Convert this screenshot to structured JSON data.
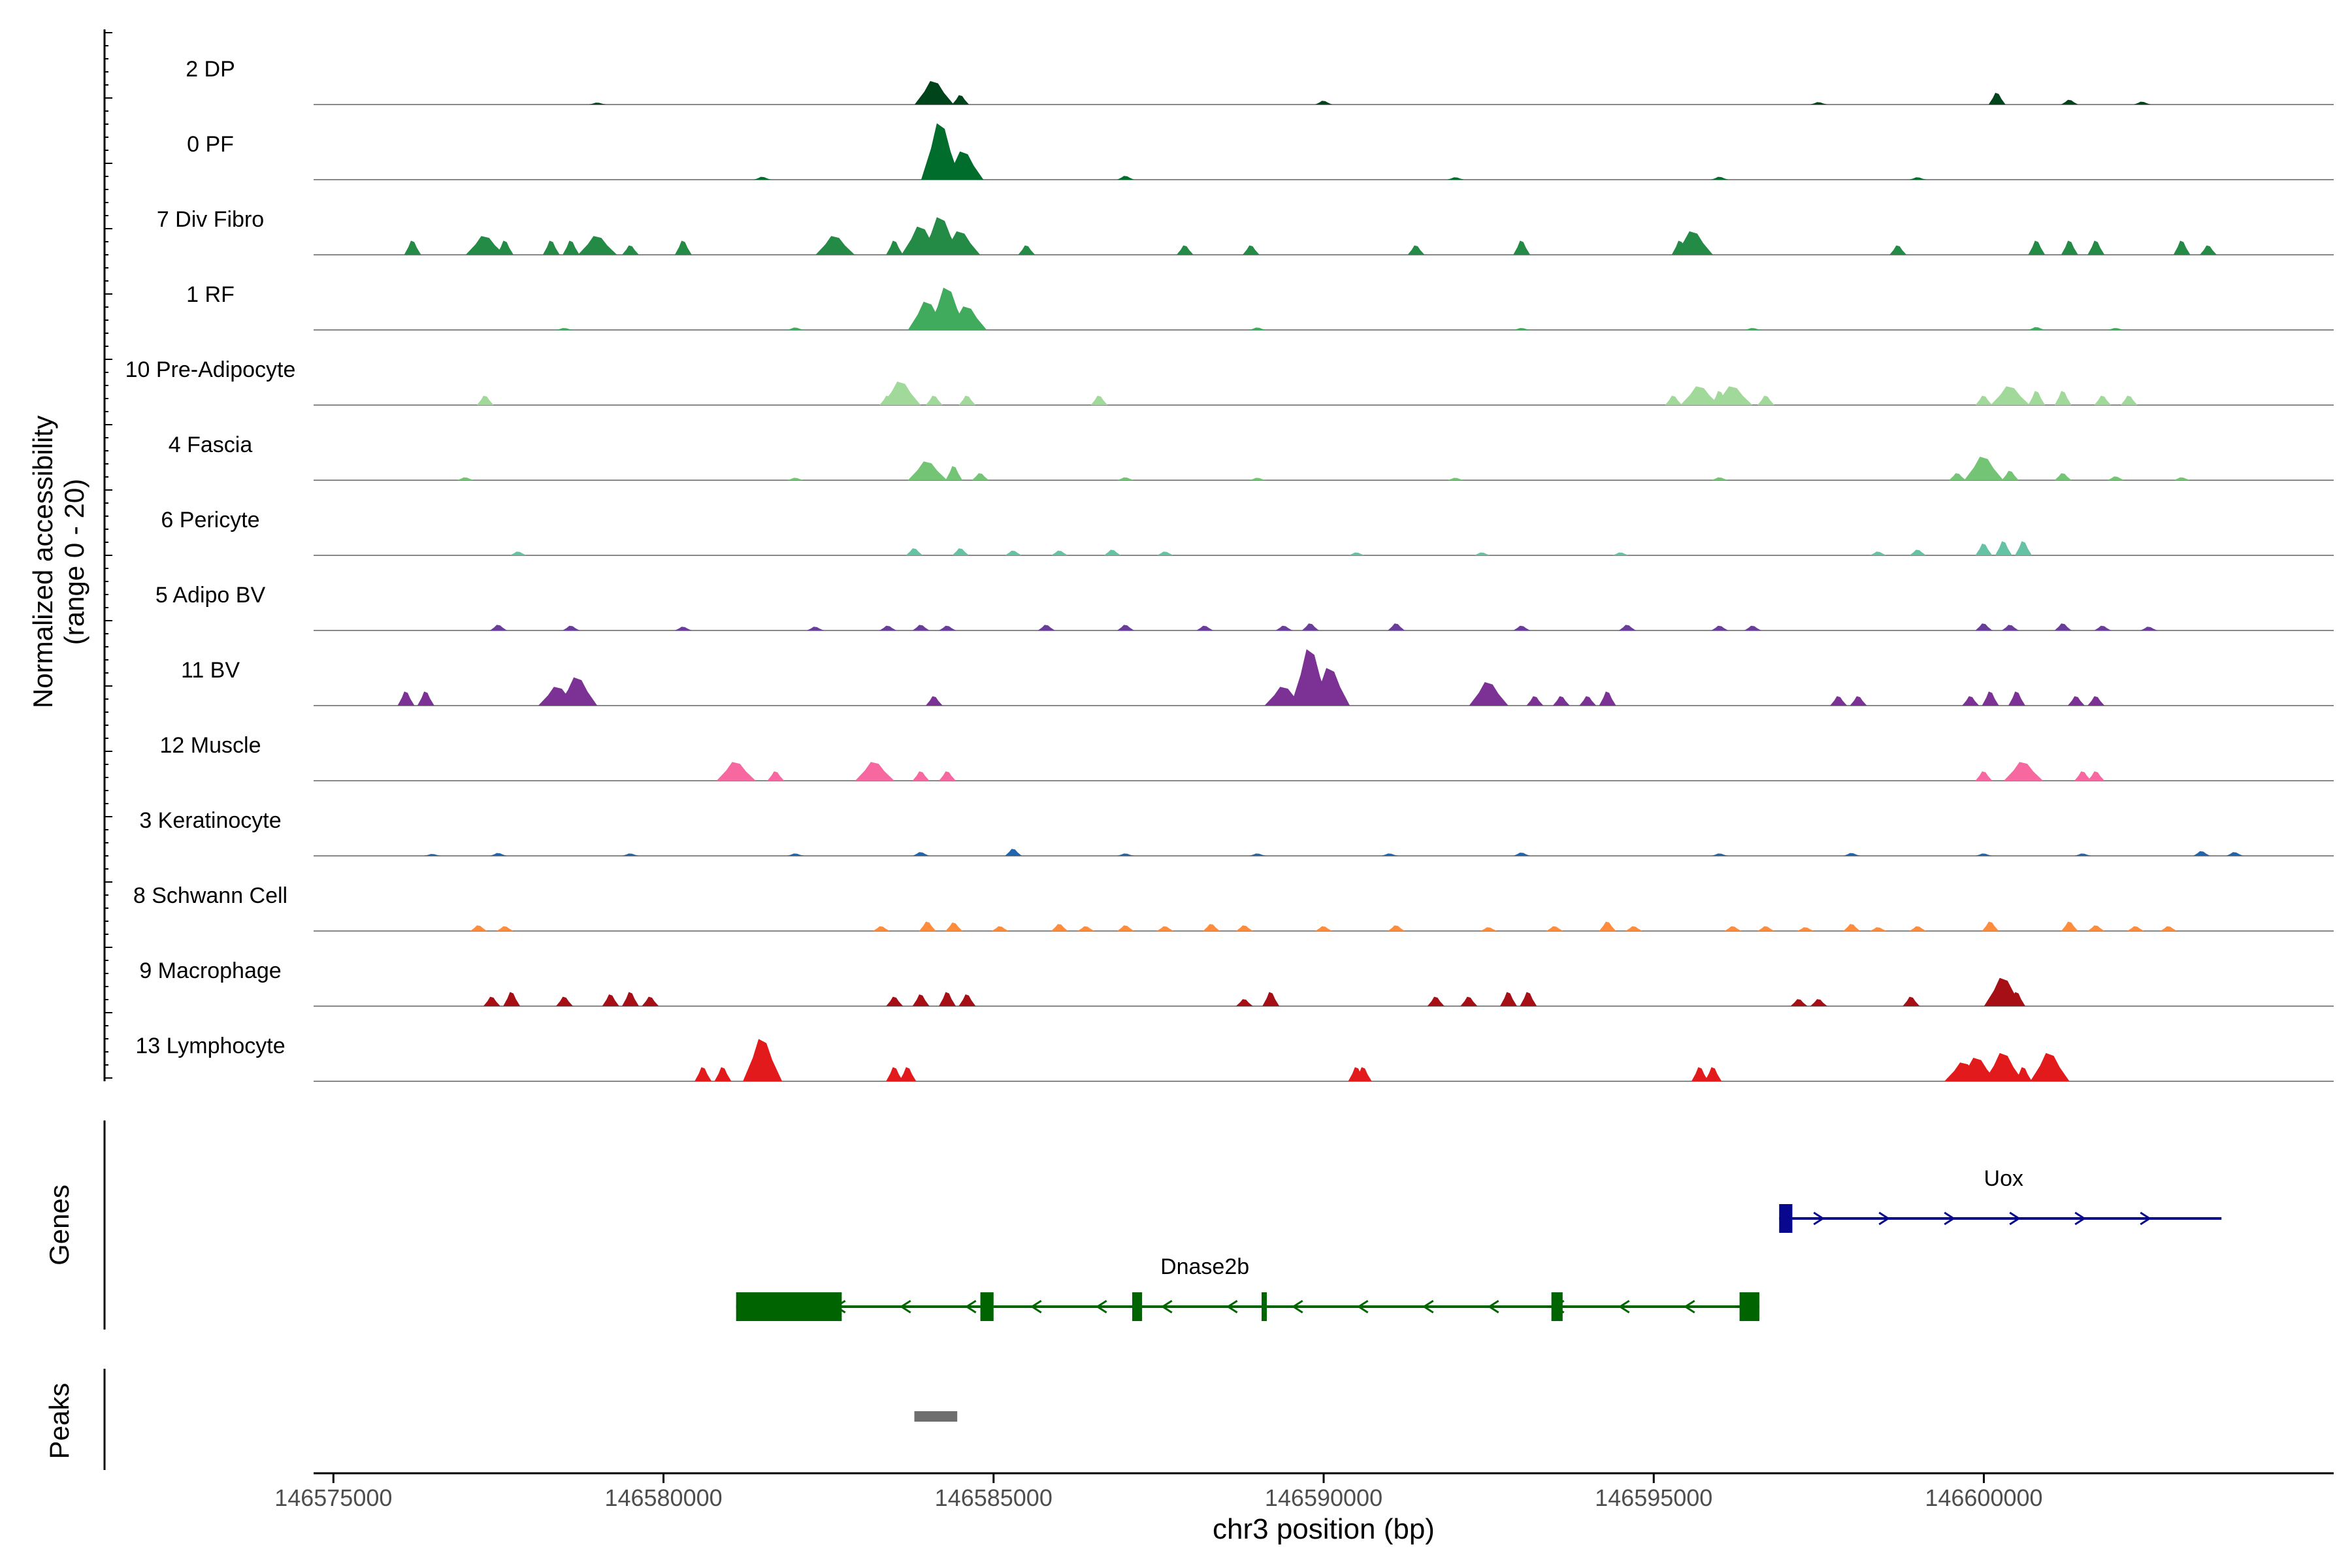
{
  "chart_data": {
    "type": "area",
    "chromosome": "chr3",
    "xlabel": "chr3 position (bp)",
    "ylabel_line1": "Normalized accessibility",
    "ylabel_line2": "(range 0 - 20)",
    "xlim": [
      146574700,
      146605300
    ],
    "ylim": [
      0,
      20
    ],
    "x_ticks": [
      146575000,
      146580000,
      146585000,
      146590000,
      146595000,
      146600000
    ],
    "x_tick_labels": [
      "146575000",
      "146580000",
      "146585000",
      "146590000",
      "146595000",
      "146600000"
    ],
    "panel_labels": {
      "genes": "Genes",
      "peaks": "Peaks"
    },
    "tracks": [
      {
        "name": "2 DP",
        "color": "#00441b",
        "peaks": [
          [
            146579000,
            0.4
          ],
          [
            146584100,
            5
          ],
          [
            146584500,
            2
          ],
          [
            146590000,
            0.8
          ],
          [
            146597500,
            0.5
          ],
          [
            146600200,
            2.5
          ],
          [
            146601300,
            1
          ],
          [
            146602400,
            0.6
          ]
        ]
      },
      {
        "name": "0 PF",
        "color": "#006d2c",
        "peaks": [
          [
            146581500,
            0.6
          ],
          [
            146584200,
            12
          ],
          [
            146584550,
            6
          ],
          [
            146587000,
            0.8
          ],
          [
            146592000,
            0.5
          ],
          [
            146596000,
            0.6
          ],
          [
            146599000,
            0.5
          ]
        ]
      },
      {
        "name": "7 Div Fibro",
        "color": "#238b45",
        "peaks": [
          [
            146576200,
            3
          ],
          [
            146577300,
            4
          ],
          [
            146577600,
            3
          ],
          [
            146578300,
            3
          ],
          [
            146578600,
            3
          ],
          [
            146579000,
            4
          ],
          [
            146579500,
            2
          ],
          [
            146580300,
            3
          ],
          [
            146582600,
            4
          ],
          [
            146583500,
            3
          ],
          [
            146583900,
            6
          ],
          [
            146584200,
            8
          ],
          [
            146584500,
            5
          ],
          [
            146585500,
            2
          ],
          [
            146587900,
            2
          ],
          [
            146588900,
            2
          ],
          [
            146591400,
            2
          ],
          [
            146593000,
            3
          ],
          [
            146595400,
            3
          ],
          [
            146595600,
            5
          ],
          [
            146598700,
            2
          ],
          [
            146600800,
            3
          ],
          [
            146601300,
            3
          ],
          [
            146601700,
            3
          ],
          [
            146603000,
            3
          ],
          [
            146603400,
            2
          ]
        ]
      },
      {
        "name": "1 RF",
        "color": "#41ab5d",
        "peaks": [
          [
            146578500,
            0.4
          ],
          [
            146582000,
            0.5
          ],
          [
            146584000,
            6
          ],
          [
            146584300,
            9
          ],
          [
            146584600,
            5
          ],
          [
            146589000,
            0.5
          ],
          [
            146593000,
            0.4
          ],
          [
            146596500,
            0.4
          ],
          [
            146600800,
            0.6
          ],
          [
            146602000,
            0.4
          ]
        ]
      },
      {
        "name": "10 Pre-Adipocyte",
        "color": "#a1d99b",
        "peaks": [
          [
            146577300,
            2
          ],
          [
            146583400,
            2
          ],
          [
            146583600,
            5
          ],
          [
            146584100,
            2
          ],
          [
            146584600,
            2
          ],
          [
            146586600,
            2
          ],
          [
            146595300,
            2
          ],
          [
            146595700,
            4
          ],
          [
            146596000,
            3
          ],
          [
            146596200,
            4
          ],
          [
            146596700,
            2
          ],
          [
            146600000,
            2
          ],
          [
            146600400,
            4
          ],
          [
            146600800,
            3
          ],
          [
            146601200,
            3
          ],
          [
            146601800,
            2
          ],
          [
            146602200,
            2
          ]
        ]
      },
      {
        "name": "4 Fascia",
        "color": "#74c476",
        "peaks": [
          [
            146577000,
            0.6
          ],
          [
            146582000,
            0.5
          ],
          [
            146584000,
            4
          ],
          [
            146584400,
            3
          ],
          [
            146584800,
            1.5
          ],
          [
            146587000,
            0.6
          ],
          [
            146589000,
            0.5
          ],
          [
            146592000,
            0.5
          ],
          [
            146596000,
            0.6
          ],
          [
            146599600,
            1.5
          ],
          [
            146600000,
            5
          ],
          [
            146600400,
            2
          ],
          [
            146601200,
            1.5
          ],
          [
            146602000,
            0.8
          ],
          [
            146603000,
            0.6
          ]
        ]
      },
      {
        "name": "6 Pericyte",
        "color": "#66c2a4",
        "peaks": [
          [
            146577800,
            0.8
          ],
          [
            146583800,
            1.5
          ],
          [
            146584500,
            1.5
          ],
          [
            146585300,
            1
          ],
          [
            146586000,
            1
          ],
          [
            146586800,
            1.2
          ],
          [
            146587600,
            0.8
          ],
          [
            146590500,
            0.6
          ],
          [
            146592400,
            0.6
          ],
          [
            146594500,
            0.6
          ],
          [
            146598400,
            0.8
          ],
          [
            146599000,
            1.2
          ],
          [
            146600000,
            2.5
          ],
          [
            146600300,
            3
          ],
          [
            146600600,
            3
          ]
        ]
      },
      {
        "name": "5 Adipo BV",
        "color": "#6a3d9a",
        "peaks": [
          [
            146577500,
            1.2
          ],
          [
            146578600,
            1
          ],
          [
            146580300,
            0.8
          ],
          [
            146582300,
            0.8
          ],
          [
            146583400,
            1
          ],
          [
            146583900,
            1.2
          ],
          [
            146584300,
            1
          ],
          [
            146585800,
            1.2
          ],
          [
            146587000,
            1.2
          ],
          [
            146588200,
            1
          ],
          [
            146589400,
            1
          ],
          [
            146589800,
            1.5
          ],
          [
            146591100,
            1.5
          ],
          [
            146593000,
            1
          ],
          [
            146594600,
            1.2
          ],
          [
            146596000,
            1
          ],
          [
            146596500,
            1
          ],
          [
            146600000,
            1.5
          ],
          [
            146600400,
            1.2
          ],
          [
            146601200,
            1.5
          ],
          [
            146601800,
            1
          ],
          [
            146602500,
            0.8
          ]
        ]
      },
      {
        "name": "11 BV",
        "color": "#7b3294",
        "peaks": [
          [
            146576100,
            3
          ],
          [
            146576400,
            3
          ],
          [
            146578400,
            4
          ],
          [
            146578700,
            6
          ],
          [
            146584100,
            2
          ],
          [
            146589400,
            4
          ],
          [
            146589800,
            12
          ],
          [
            146590100,
            8
          ],
          [
            146592500,
            5
          ],
          [
            146593200,
            2
          ],
          [
            146593600,
            2
          ],
          [
            146594000,
            2
          ],
          [
            146594300,
            3
          ],
          [
            146597800,
            2
          ],
          [
            146598100,
            2
          ],
          [
            146599800,
            2
          ],
          [
            146600100,
            3
          ],
          [
            146600500,
            3
          ],
          [
            146601400,
            2
          ],
          [
            146601700,
            2
          ]
        ]
      },
      {
        "name": "12 Muscle",
        "color": "#f768a1",
        "peaks": [
          [
            146581100,
            4
          ],
          [
            146581700,
            2
          ],
          [
            146583200,
            4
          ],
          [
            146583900,
            2
          ],
          [
            146584300,
            2
          ],
          [
            146600000,
            2
          ],
          [
            146600600,
            4
          ],
          [
            146601500,
            2
          ],
          [
            146601700,
            2
          ]
        ]
      },
      {
        "name": "3 Keratinocyte",
        "color": "#2166ac",
        "peaks": [
          [
            146576500,
            0.4
          ],
          [
            146577500,
            0.6
          ],
          [
            146579500,
            0.5
          ],
          [
            146582000,
            0.5
          ],
          [
            146583900,
            0.8
          ],
          [
            146585300,
            1.5
          ],
          [
            146587000,
            0.5
          ],
          [
            146589000,
            0.5
          ],
          [
            146591000,
            0.5
          ],
          [
            146593000,
            0.7
          ],
          [
            146596000,
            0.5
          ],
          [
            146598000,
            0.6
          ],
          [
            146600000,
            0.5
          ],
          [
            146601500,
            0.5
          ],
          [
            146603300,
            1
          ],
          [
            146603800,
            0.8
          ]
        ]
      },
      {
        "name": "8 Schwann Cell",
        "color": "#fd8d3c",
        "peaks": [
          [
            146577200,
            1.2
          ],
          [
            146577600,
            1
          ],
          [
            146583300,
            1
          ],
          [
            146584000,
            2
          ],
          [
            146584400,
            1.8
          ],
          [
            146585100,
            1
          ],
          [
            146586000,
            1.5
          ],
          [
            146586400,
            1
          ],
          [
            146587000,
            1.2
          ],
          [
            146587600,
            1
          ],
          [
            146588300,
            1.5
          ],
          [
            146588800,
            1.2
          ],
          [
            146590000,
            1
          ],
          [
            146591100,
            1.2
          ],
          [
            146592500,
            0.8
          ],
          [
            146593500,
            1
          ],
          [
            146594300,
            2
          ],
          [
            146594700,
            1
          ],
          [
            146596200,
            1
          ],
          [
            146596700,
            1
          ],
          [
            146597300,
            0.8
          ],
          [
            146598000,
            1.5
          ],
          [
            146598400,
            0.8
          ],
          [
            146599000,
            1
          ],
          [
            146600100,
            2
          ],
          [
            146601300,
            2
          ],
          [
            146601700,
            1.2
          ],
          [
            146602300,
            1
          ],
          [
            146602800,
            1
          ]
        ]
      },
      {
        "name": "9 Macrophage",
        "color": "#a50f15",
        "peaks": [
          [
            146577400,
            2
          ],
          [
            146577700,
            3
          ],
          [
            146578500,
            2
          ],
          [
            146579200,
            2.5
          ],
          [
            146579500,
            3
          ],
          [
            146579800,
            2
          ],
          [
            146583500,
            2
          ],
          [
            146583900,
            2.5
          ],
          [
            146584300,
            3
          ],
          [
            146584600,
            2.5
          ],
          [
            146588800,
            1.5
          ],
          [
            146589200,
            3
          ],
          [
            146591700,
            2
          ],
          [
            146592200,
            2
          ],
          [
            146592800,
            3
          ],
          [
            146593100,
            3
          ],
          [
            146597200,
            1.5
          ],
          [
            146597500,
            1.5
          ],
          [
            146598900,
            2
          ],
          [
            146600300,
            6
          ],
          [
            146600500,
            3
          ]
        ]
      },
      {
        "name": "13 Lymphocyte",
        "color": "#e31a1c",
        "peaks": [
          [
            146580600,
            3
          ],
          [
            146580900,
            3
          ],
          [
            146581500,
            9
          ],
          [
            146583500,
            3
          ],
          [
            146583700,
            3
          ],
          [
            146590500,
            3
          ],
          [
            146590600,
            3
          ],
          [
            146595700,
            3
          ],
          [
            146595900,
            3
          ],
          [
            146599700,
            4
          ],
          [
            146599900,
            5
          ],
          [
            146600300,
            6
          ],
          [
            146601000,
            6
          ],
          [
            146599900,
            2.5
          ],
          [
            146600600,
            3
          ]
        ]
      }
    ],
    "genes": [
      {
        "name": "Uox",
        "color": "#08088f",
        "strand": "+",
        "start": 146596900,
        "end": 146603600,
        "exons": [
          [
            146596900,
            146597100
          ]
        ]
      },
      {
        "name": "Dnase2b",
        "color": "#006400",
        "strand": "-",
        "start": 146581100,
        "end": 146596600,
        "exons": [
          [
            146581100,
            146582700
          ],
          [
            146584800,
            146585000
          ],
          [
            146587100,
            146587250
          ],
          [
            146589060,
            146589120
          ],
          [
            146593450,
            146593620
          ],
          [
            146596300,
            146596600
          ]
        ]
      }
    ],
    "peaks_region": [
      [
        146583800,
        146584450
      ]
    ]
  }
}
